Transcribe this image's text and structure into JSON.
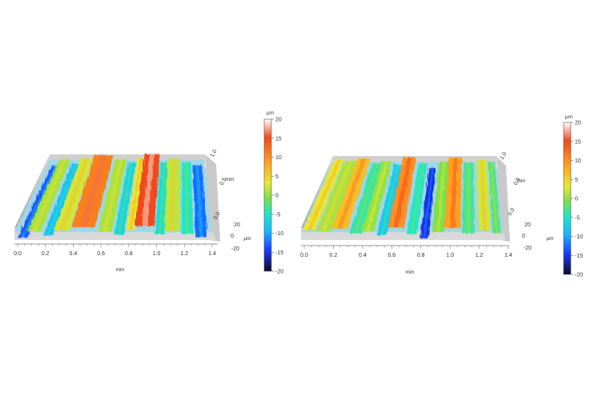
{
  "panels": [
    {
      "id": "left",
      "x_ticks": [
        "0.0",
        "0.2",
        "0.4",
        "0.6",
        "0.8",
        "1.0",
        "1.2",
        "1.4"
      ],
      "x_unit": "mm",
      "y_ticks": [
        "0.0",
        "0.5",
        "1.0"
      ],
      "y_unit": "mm",
      "z_ticks": [
        "20",
        "0",
        "-20"
      ],
      "z_unit": "µm",
      "stripes": [
        {
          "pos": 0.04,
          "width": 0.05,
          "level": -14
        },
        {
          "pos": 0.1,
          "width": 0.07,
          "level": 2
        },
        {
          "pos": 0.17,
          "width": 0.05,
          "level": -9
        },
        {
          "pos": 0.24,
          "width": 0.08,
          "level": 4
        },
        {
          "pos": 0.35,
          "width": 0.12,
          "level": 12
        },
        {
          "pos": 0.46,
          "width": 0.07,
          "level": 2
        },
        {
          "pos": 0.53,
          "width": 0.05,
          "level": -7
        },
        {
          "pos": 0.59,
          "width": 0.05,
          "level": 5
        },
        {
          "pos": 0.66,
          "width": 0.1,
          "level": 15
        },
        {
          "pos": 0.74,
          "width": 0.05,
          "level": -6
        },
        {
          "pos": 0.8,
          "width": 0.08,
          "level": 3
        },
        {
          "pos": 0.88,
          "width": 0.06,
          "level": -5
        },
        {
          "pos": 0.95,
          "width": 0.06,
          "level": -13
        }
      ]
    },
    {
      "id": "right",
      "x_ticks": [
        "0.0",
        "0.2",
        "0.4",
        "0.6",
        "0.8",
        "1.0",
        "1.2",
        "1.4"
      ],
      "x_unit": "mm",
      "y_ticks": [
        "0.0",
        "0.5",
        "1.0"
      ],
      "y_unit": "mm",
      "z_ticks": [
        "20",
        "0",
        "-20"
      ],
      "z_unit": "µm",
      "stripes": [
        {
          "pos": 0.04,
          "width": 0.06,
          "level": 5
        },
        {
          "pos": 0.11,
          "width": 0.07,
          "level": 2
        },
        {
          "pos": 0.19,
          "width": 0.08,
          "level": 8
        },
        {
          "pos": 0.27,
          "width": 0.06,
          "level": -4
        },
        {
          "pos": 0.33,
          "width": 0.06,
          "level": 1
        },
        {
          "pos": 0.4,
          "width": 0.05,
          "level": -8
        },
        {
          "pos": 0.47,
          "width": 0.08,
          "level": 11
        },
        {
          "pos": 0.55,
          "width": 0.05,
          "level": -5
        },
        {
          "pos": 0.61,
          "width": 0.04,
          "level": -16
        },
        {
          "pos": 0.68,
          "width": 0.06,
          "level": 0
        },
        {
          "pos": 0.75,
          "width": 0.08,
          "level": 10
        },
        {
          "pos": 0.83,
          "width": 0.06,
          "level": -3
        },
        {
          "pos": 0.91,
          "width": 0.06,
          "level": 4
        },
        {
          "pos": 0.97,
          "width": 0.04,
          "level": -2
        }
      ]
    }
  ],
  "colorbars": [
    {
      "id": "left",
      "unit": "µm",
      "ticks": [
        "20",
        "15",
        "10",
        "5",
        "0",
        "-5",
        "-10",
        "-15",
        "-20"
      ]
    },
    {
      "id": "right",
      "unit": "µm",
      "ticks": [
        "20",
        "15",
        "10",
        "5",
        "0",
        "-5",
        "-10",
        "-15",
        "-20"
      ]
    }
  ],
  "colormap": [
    "#0a0a8a",
    "#1a3cff",
    "#18b4ff",
    "#21e6c8",
    "#7be04a",
    "#e8e832",
    "#ffa020",
    "#f04a1e",
    "#ffffff"
  ]
}
